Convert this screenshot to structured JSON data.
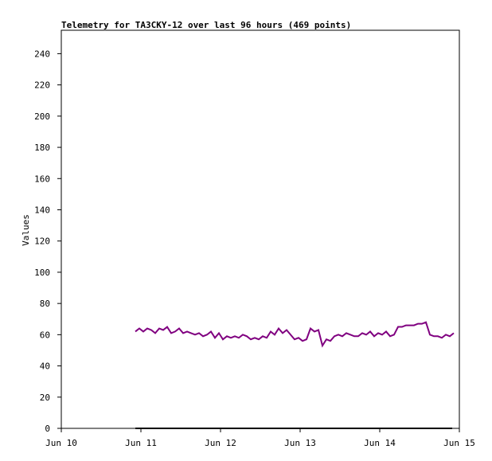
{
  "chart_data": {
    "type": "line",
    "title": "Telemetry for TA3CKY-12 over last 96 hours (469 points)",
    "y_label": "Values",
    "xlim": [
      10,
      15
    ],
    "xticks": [
      {
        "value": 10,
        "label": "Jun 10"
      },
      {
        "value": 11,
        "label": "Jun 11"
      },
      {
        "value": 12,
        "label": "Jun 12"
      },
      {
        "value": 13,
        "label": "Jun 13"
      },
      {
        "value": 14,
        "label": "Jun 14"
      },
      {
        "value": 15,
        "label": "Jun 15"
      }
    ],
    "ylim": [
      0,
      255
    ],
    "yticks": [
      0,
      20,
      40,
      60,
      80,
      100,
      120,
      140,
      160,
      180,
      200,
      220,
      240
    ],
    "series": [
      {
        "color": "#800080",
        "x": [
          10.93,
          10.98,
          11.03,
          11.08,
          11.13,
          11.18,
          11.23,
          11.28,
          11.33,
          11.38,
          11.43,
          11.48,
          11.53,
          11.58,
          11.63,
          11.68,
          11.73,
          11.78,
          11.83,
          11.88,
          11.93,
          11.98,
          12.03,
          12.08,
          12.13,
          12.18,
          12.23,
          12.28,
          12.33,
          12.38,
          12.43,
          12.48,
          12.53,
          12.58,
          12.63,
          12.68,
          12.73,
          12.78,
          12.83,
          12.88,
          12.93,
          12.98,
          13.03,
          13.08,
          13.13,
          13.18,
          13.23,
          13.28,
          13.33,
          13.38,
          13.43,
          13.48,
          13.53,
          13.58,
          13.63,
          13.68,
          13.73,
          13.78,
          13.83,
          13.88,
          13.93,
          13.98,
          14.03,
          14.08,
          14.13,
          14.18,
          14.23,
          14.28,
          14.33,
          14.38,
          14.43,
          14.48,
          14.53,
          14.58,
          14.63,
          14.68,
          14.73,
          14.78,
          14.83,
          14.88,
          14.93
        ],
        "values": [
          62,
          64,
          62,
          64,
          63,
          61,
          64,
          63,
          65,
          61,
          62,
          64,
          61,
          62,
          61,
          60,
          61,
          59,
          60,
          62,
          58,
          61,
          57,
          59,
          58,
          59,
          58,
          60,
          59,
          57,
          58,
          57,
          59,
          58,
          62,
          60,
          64,
          61,
          63,
          60,
          57,
          58,
          56,
          57,
          64,
          62,
          63,
          53,
          57,
          56,
          59,
          60,
          59,
          61,
          60,
          59,
          59,
          61,
          60,
          62,
          59,
          61,
          60,
          62,
          59,
          60,
          65,
          65,
          66,
          66,
          66,
          67,
          67,
          68,
          60,
          59,
          59,
          58,
          60,
          59,
          61
        ]
      },
      {
        "color": "#000000",
        "x": [
          10.93,
          14.91
        ],
        "values": [
          0,
          0
        ]
      }
    ]
  }
}
